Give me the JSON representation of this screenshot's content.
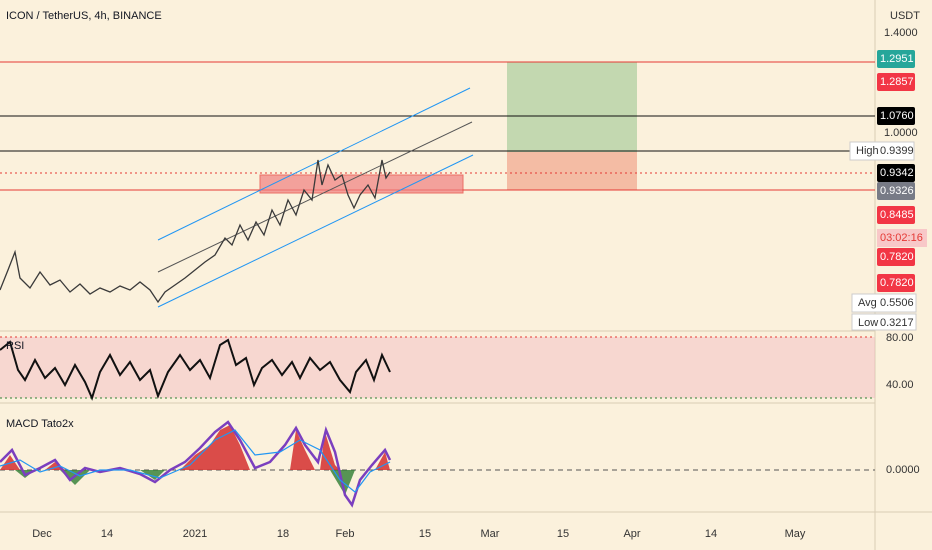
{
  "header": {
    "title": "ICON / TetherUS, 4h, BINANCE",
    "currency": "USDT"
  },
  "price_axis": {
    "top": "1.4000",
    "target": "1.2951",
    "stop_high": "1.2857",
    "level_black": "1.0760",
    "round": "1.0000",
    "high_label": "High",
    "high": "0.9399",
    "last": "0.9342",
    "entry": "0.9326",
    "level_red": "0.8485",
    "countdown": "03:02:16",
    "level_a": "0.7820",
    "level_b": "0.7820",
    "avg_label": "Avg",
    "avg": "0.5506",
    "low_label": "Low",
    "low": "0.3217"
  },
  "rsi": {
    "label": "RSI",
    "upper": "80.00",
    "lower": "40.00"
  },
  "macd": {
    "label": "MACD Tato2x",
    "zero": "0.0000"
  },
  "time_axis": [
    "Dec",
    "14",
    "2021",
    "18",
    "Feb",
    "15",
    "Mar",
    "15",
    "Apr",
    "14",
    "May"
  ]
}
